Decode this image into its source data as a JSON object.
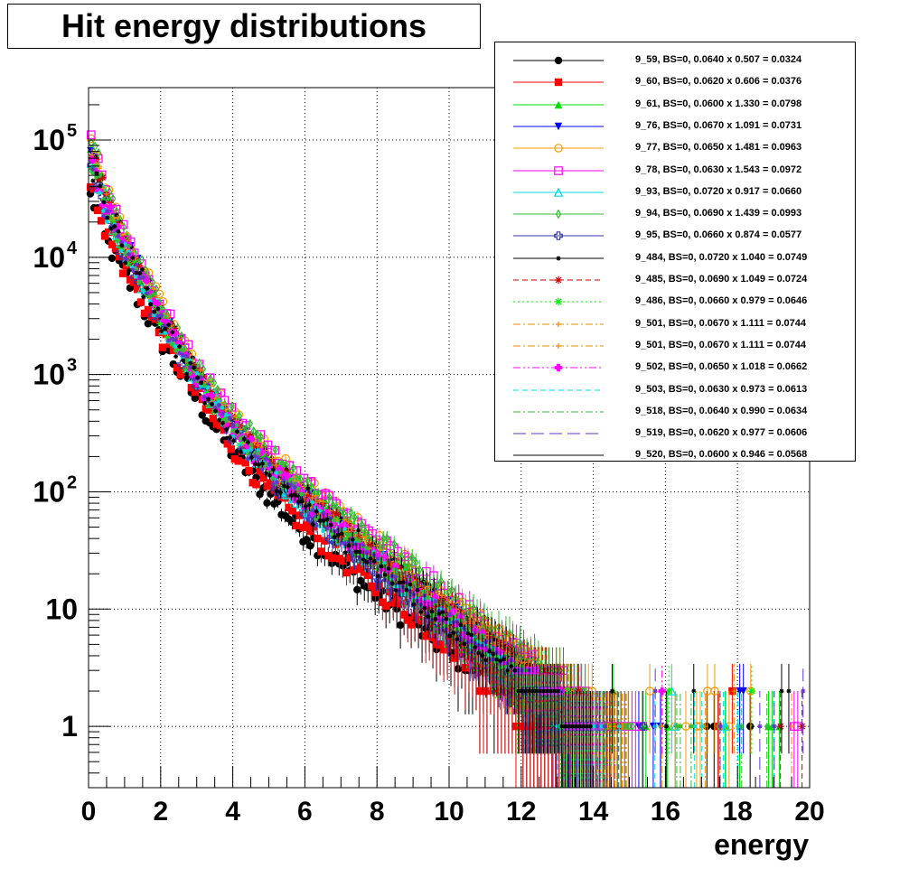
{
  "chart_data": {
    "type": "scatter",
    "title": "Hit energy distributions",
    "xlabel": "energy",
    "ylabel": "",
    "xlim": [
      0,
      20
    ],
    "ylim": [
      0.3,
      280000
    ],
    "y_scale": "log",
    "grid": true,
    "legend_position": "top-right",
    "x_ticks": [
      "0",
      "2",
      "4",
      "6",
      "8",
      "10",
      "12",
      "14",
      "16",
      "18",
      "20"
    ],
    "y_ticks": [
      {
        "value": 1,
        "label": "1"
      },
      {
        "value": 10,
        "label": "10"
      },
      {
        "value": 100,
        "label": "10",
        "exp": "2"
      },
      {
        "value": 1000,
        "label": "10",
        "exp": "3"
      },
      {
        "value": 10000,
        "label": "10",
        "exp": "4"
      },
      {
        "value": 100000,
        "label": "10",
        "exp": "5"
      }
    ],
    "series": [
      {
        "name": "9_59, BS=0, 0.0640 x 0.507 = 0.0324",
        "color": "#000000",
        "marker": "circle-filled",
        "line": "solid",
        "scale": 0.0324
      },
      {
        "name": "9_60, BS=0, 0.0620 x 0.606 = 0.0376",
        "color": "#ff0000",
        "marker": "square-filled",
        "line": "solid",
        "scale": 0.0376
      },
      {
        "name": "9_61, BS=0, 0.0600 x 1.330 = 0.0798",
        "color": "#00dd00",
        "marker": "triangle-up-filled",
        "line": "solid",
        "scale": 0.0798
      },
      {
        "name": "9_76, BS=0, 0.0670 x 1.091 = 0.0731",
        "color": "#0000ff",
        "marker": "triangle-down-filled",
        "line": "solid",
        "scale": 0.0731
      },
      {
        "name": "9_77, BS=0, 0.0650 x 1.481 = 0.0963",
        "color": "#ff9900",
        "marker": "circle-open",
        "line": "solid",
        "scale": 0.0963
      },
      {
        "name": "9_78, BS=0, 0.0630 x 1.543 = 0.0972",
        "color": "#ff00ff",
        "marker": "square-open",
        "line": "solid",
        "scale": 0.0972
      },
      {
        "name": "9_93, BS=0, 0.0720 x 0.917 = 0.0660",
        "color": "#00dddd",
        "marker": "triangle-up-open",
        "line": "solid",
        "scale": 0.066
      },
      {
        "name": "9_94, BS=0, 0.0690 x 1.439 = 0.0993",
        "color": "#33bb33",
        "marker": "diamond-open",
        "line": "solid",
        "scale": 0.0993
      },
      {
        "name": "9_95, BS=0, 0.0660 x 0.874 = 0.0577",
        "color": "#3333aa",
        "marker": "cross-open",
        "line": "solid",
        "scale": 0.0577
      },
      {
        "name": "9_484, BS=0, 0.0720 x 1.040 = 0.0749",
        "color": "#000000",
        "marker": "star-small",
        "line": "solid",
        "scale": 0.0749
      },
      {
        "name": "9_485, BS=0, 0.0690 x 1.049 = 0.0724",
        "color": "#cc0000",
        "marker": "star",
        "line": "dashed",
        "scale": 0.0724
      },
      {
        "name": "9_486, BS=0, 0.0660 x 0.979 = 0.0646",
        "color": "#00ee00",
        "marker": "asterisk",
        "line": "dotted",
        "scale": 0.0646
      },
      {
        "name": "9_501, BS=0, 0.0670 x 1.111 = 0.0744",
        "color": "#ee8800",
        "marker": "plus-small",
        "line": "dashdot",
        "scale": 0.0744
      },
      {
        "name": "9_501, BS=0, 0.0670 x 1.111 = 0.0744",
        "color": "#ee8800",
        "marker": "plus-small",
        "line": "dashdot",
        "scale": 0.0744
      },
      {
        "name": "9_502, BS=0, 0.0650 x 1.018 = 0.0662",
        "color": "#ff00ff",
        "marker": "plus-filled",
        "line": "dashdotdot",
        "scale": 0.0662
      },
      {
        "name": "9_503, BS=0, 0.0630 x 0.973 = 0.0613",
        "color": "#00dddd",
        "marker": "none",
        "line": "dashed",
        "scale": 0.0613
      },
      {
        "name": "9_518, BS=0, 0.0640 x 0.990 = 0.0634",
        "color": "#33bb33",
        "marker": "none",
        "line": "dashdot",
        "scale": 0.0634
      },
      {
        "name": "9_519, BS=0, 0.0620 x 0.977 = 0.0606",
        "color": "#6633cc",
        "marker": "none",
        "line": "longdash",
        "scale": 0.0606
      },
      {
        "name": "9_520, BS=0, 0.0600 x 0.946 = 0.0568",
        "color": "#000000",
        "marker": "none",
        "line": "solid",
        "scale": 0.0568
      }
    ]
  }
}
